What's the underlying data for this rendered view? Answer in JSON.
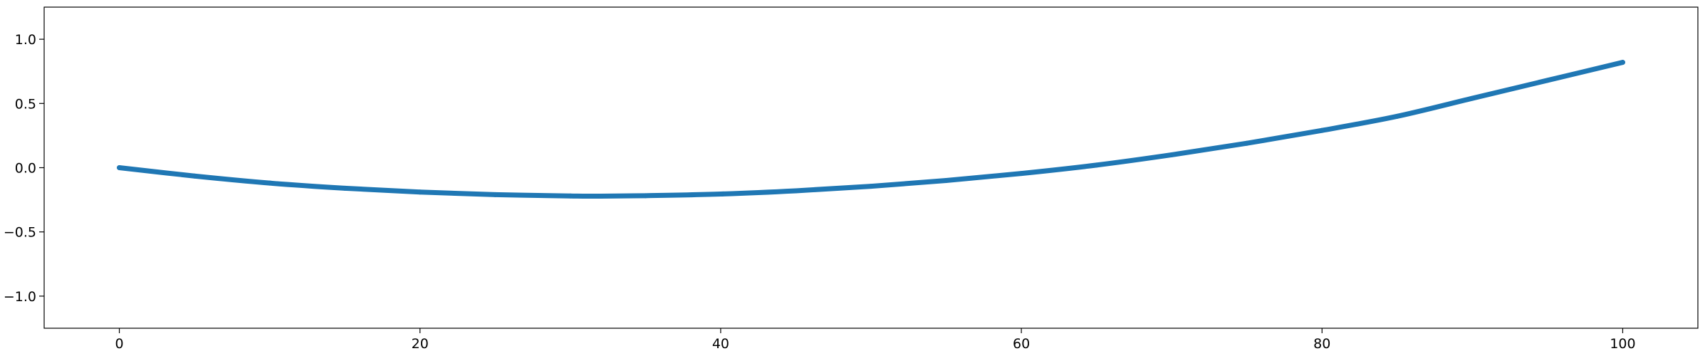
{
  "chart_data": {
    "type": "line",
    "title": "",
    "xlabel": "",
    "ylabel": "",
    "xlim": [
      -5,
      105
    ],
    "ylim": [
      -1.25,
      1.25
    ],
    "grid": false,
    "legend": "none",
    "x_ticks": [
      0,
      20,
      40,
      60,
      80,
      100
    ],
    "x_tick_labels": [
      "0",
      "20",
      "40",
      "60",
      "80",
      "100"
    ],
    "y_ticks": [
      1.0,
      0.5,
      0.0,
      -0.5,
      -1.0
    ],
    "y_tick_labels": [
      "1.0",
      "0.5",
      "0.0",
      "−0.5",
      "−1.0"
    ],
    "series": [
      {
        "color": "#1f77b4",
        "x": [
          0,
          5,
          10,
          15,
          20,
          25,
          30,
          32,
          35,
          40,
          45,
          50,
          55,
          60,
          65,
          70,
          75,
          80,
          85,
          90,
          95,
          100
        ],
        "y": [
          0.0,
          -0.065,
          -0.12,
          -0.16,
          -0.19,
          -0.21,
          -0.22,
          -0.222,
          -0.218,
          -0.205,
          -0.18,
          -0.145,
          -0.1,
          -0.045,
          0.02,
          0.1,
          0.19,
          0.29,
          0.4,
          0.54,
          0.68,
          0.82
        ]
      }
    ]
  }
}
